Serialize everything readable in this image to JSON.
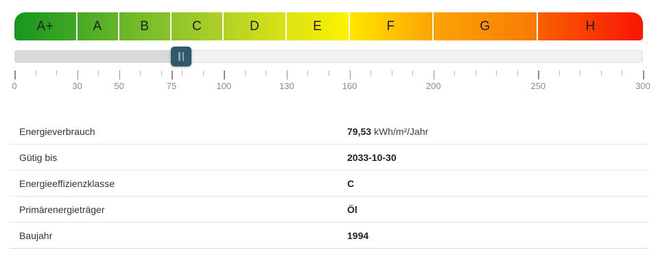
{
  "scale": {
    "min": 0,
    "max": 300,
    "segments": [
      {
        "label": "A+",
        "range": [
          0,
          30
        ],
        "color_from": "#17961f",
        "color_to": "#41a724"
      },
      {
        "label": "A",
        "range": [
          30,
          50
        ],
        "color_from": "#45a925",
        "color_to": "#64b528"
      },
      {
        "label": "B",
        "range": [
          50,
          75
        ],
        "color_from": "#67b628",
        "color_to": "#89c32b"
      },
      {
        "label": "C",
        "range": [
          75,
          100
        ],
        "color_from": "#8cc42b",
        "color_to": "#afd026"
      },
      {
        "label": "D",
        "range": [
          100,
          130
        ],
        "color_from": "#b2d125",
        "color_to": "#dae218"
      },
      {
        "label": "E",
        "range": [
          130,
          160
        ],
        "color_from": "#dde313",
        "color_to": "#fdf202"
      },
      {
        "label": "F",
        "range": [
          160,
          200
        ],
        "color_from": "#fee700",
        "color_to": "#fca404"
      },
      {
        "label": "G",
        "range": [
          200,
          250
        ],
        "color_from": "#fba405",
        "color_to": "#f87a02"
      },
      {
        "label": "H",
        "range": [
          250,
          300
        ],
        "color_from": "#f86002",
        "color_to": "#fa1404"
      }
    ],
    "major_ticks": [
      0,
      30,
      50,
      75,
      100,
      130,
      160,
      200,
      250,
      300
    ],
    "minor_tick_step": 10
  },
  "slider": {
    "value": 79.53,
    "handle_color": "#2f5a6a",
    "grip_color": "#8ea8b4",
    "fill_color": "#d9d9d9",
    "track_color": "#f1f1f1"
  },
  "details": {
    "rows": [
      {
        "label": "Energieverbrauch",
        "value": "79,53",
        "unit": "kWh/m²/Jahr"
      },
      {
        "label": "Gütig bis",
        "value": "2033-10-30",
        "unit": ""
      },
      {
        "label": "Energieeffizienzklasse",
        "value": "C",
        "unit": ""
      },
      {
        "label": "Primärenergieträger",
        "value": "Öl",
        "unit": ""
      },
      {
        "label": "Baujahr",
        "value": "1994",
        "unit": ""
      }
    ]
  }
}
